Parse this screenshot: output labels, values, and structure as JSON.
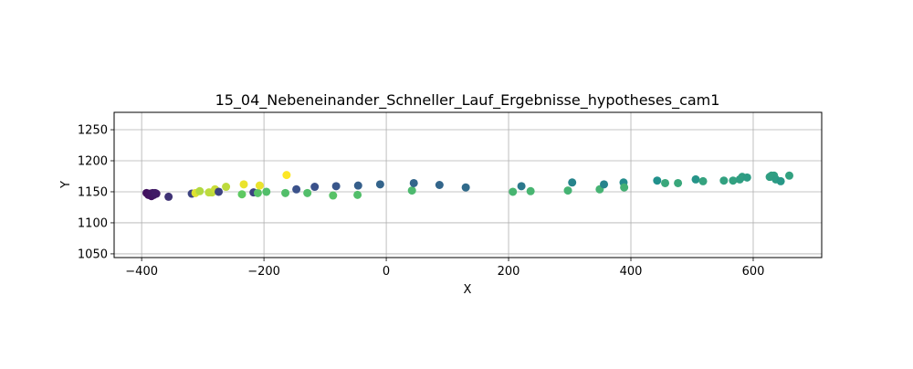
{
  "chart_data": {
    "type": "scatter",
    "title": "15_04_Nebeneinander_Schneller_Lauf_Ergebnisse_hypotheses_cam1",
    "xlabel": "X",
    "ylabel": "Y",
    "xlim": [
      -445,
      712
    ],
    "ylim": [
      1044,
      1278
    ],
    "xticks": [
      -400,
      -200,
      0,
      200,
      400,
      600
    ],
    "yticks": [
      1050,
      1100,
      1150,
      1200,
      1250
    ],
    "grid": true,
    "colormap": [
      "#440154",
      "#3b528b",
      "#21918c",
      "#5ec962",
      "#fde725"
    ],
    "points": [
      {
        "x": -392,
        "y": 1148,
        "c": 0.05
      },
      {
        "x": -389,
        "y": 1145,
        "c": 0.05
      },
      {
        "x": -386,
        "y": 1147,
        "c": 0.06
      },
      {
        "x": -384,
        "y": 1143,
        "c": 0.06
      },
      {
        "x": -382,
        "y": 1148,
        "c": 0.07
      },
      {
        "x": -380,
        "y": 1145,
        "c": 0.07
      },
      {
        "x": -378,
        "y": 1148,
        "c": 0.08
      },
      {
        "x": -376,
        "y": 1147,
        "c": 0.08
      },
      {
        "x": -356,
        "y": 1142,
        "c": 0.15
      },
      {
        "x": -318,
        "y": 1147,
        "c": 0.2
      },
      {
        "x": -312,
        "y": 1148,
        "c": 0.95
      },
      {
        "x": -305,
        "y": 1151,
        "c": 0.88
      },
      {
        "x": -290,
        "y": 1149,
        "c": 0.9
      },
      {
        "x": -285,
        "y": 1149,
        "c": 0.9
      },
      {
        "x": -280,
        "y": 1154,
        "c": 0.92
      },
      {
        "x": -274,
        "y": 1150,
        "c": 0.2
      },
      {
        "x": -262,
        "y": 1158,
        "c": 0.9
      },
      {
        "x": -236,
        "y": 1146,
        "c": 0.75
      },
      {
        "x": -233,
        "y": 1162,
        "c": 0.97
      },
      {
        "x": -217,
        "y": 1149,
        "c": 0.2
      },
      {
        "x": -210,
        "y": 1148,
        "c": 0.72
      },
      {
        "x": -207,
        "y": 1160,
        "c": 0.97
      },
      {
        "x": -196,
        "y": 1150,
        "c": 0.7
      },
      {
        "x": -165,
        "y": 1148,
        "c": 0.7
      },
      {
        "x": -163,
        "y": 1177,
        "c": 1.0
      },
      {
        "x": -147,
        "y": 1154,
        "c": 0.25
      },
      {
        "x": -129,
        "y": 1148,
        "c": 0.7
      },
      {
        "x": -117,
        "y": 1158,
        "c": 0.25
      },
      {
        "x": -87,
        "y": 1144,
        "c": 0.72
      },
      {
        "x": -82,
        "y": 1159,
        "c": 0.27
      },
      {
        "x": -47,
        "y": 1145,
        "c": 0.7
      },
      {
        "x": -46,
        "y": 1160,
        "c": 0.3
      },
      {
        "x": -10,
        "y": 1162,
        "c": 0.32
      },
      {
        "x": 42,
        "y": 1152,
        "c": 0.68
      },
      {
        "x": 45,
        "y": 1164,
        "c": 0.33
      },
      {
        "x": 87,
        "y": 1161,
        "c": 0.33
      },
      {
        "x": 130,
        "y": 1157,
        "c": 0.35
      },
      {
        "x": 207,
        "y": 1150,
        "c": 0.66
      },
      {
        "x": 221,
        "y": 1159,
        "c": 0.4
      },
      {
        "x": 236,
        "y": 1151,
        "c": 0.66
      },
      {
        "x": 297,
        "y": 1152,
        "c": 0.65
      },
      {
        "x": 304,
        "y": 1165,
        "c": 0.45
      },
      {
        "x": 349,
        "y": 1154,
        "c": 0.65
      },
      {
        "x": 356,
        "y": 1162,
        "c": 0.45
      },
      {
        "x": 388,
        "y": 1165,
        "c": 0.48
      },
      {
        "x": 389,
        "y": 1157,
        "c": 0.64
      },
      {
        "x": 443,
        "y": 1168,
        "c": 0.5
      },
      {
        "x": 456,
        "y": 1164,
        "c": 0.6
      },
      {
        "x": 477,
        "y": 1164,
        "c": 0.6
      },
      {
        "x": 506,
        "y": 1170,
        "c": 0.52
      },
      {
        "x": 518,
        "y": 1167,
        "c": 0.58
      },
      {
        "x": 552,
        "y": 1168,
        "c": 0.57
      },
      {
        "x": 567,
        "y": 1168,
        "c": 0.57
      },
      {
        "x": 578,
        "y": 1170,
        "c": 0.56
      },
      {
        "x": 582,
        "y": 1174,
        "c": 0.56
      },
      {
        "x": 590,
        "y": 1173,
        "c": 0.55
      },
      {
        "x": 627,
        "y": 1174,
        "c": 0.56
      },
      {
        "x": 630,
        "y": 1176,
        "c": 0.56
      },
      {
        "x": 634,
        "y": 1176,
        "c": 0.56
      },
      {
        "x": 637,
        "y": 1170,
        "c": 0.55
      },
      {
        "x": 645,
        "y": 1167,
        "c": 0.53
      },
      {
        "x": 659,
        "y": 1176,
        "c": 0.57
      }
    ]
  }
}
